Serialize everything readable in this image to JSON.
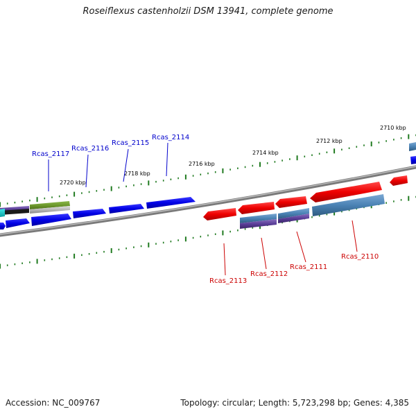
{
  "title": "Roseiflexus castenholzii DSM 13941, complete genome",
  "footer": {
    "accession": "Accession: NC_009767",
    "summary": "Topology: circular; Length: 5,723,298 bp; Genes: 4,385"
  },
  "colors": {
    "backbone": "#7a7a7a",
    "tick": "#1f7a1f",
    "forward_gene": "#0000ee",
    "reverse_gene": "#ee0000",
    "forward_label": "#0000cc",
    "reverse_label": "#cc0000",
    "feature_steelblue": "#4a82b4",
    "feature_purple": "#6a4aa0",
    "feature_green": "#6e9a2e"
  },
  "scale_labels": [
    "2710 kbp",
    "2712 kbp",
    "2714 kbp",
    "2716 kbp",
    "2718 kbp",
    "2720 kbp"
  ],
  "gene_labels": [
    {
      "text": "Rcas_2117",
      "strand": "forward"
    },
    {
      "text": "Rcas_2116",
      "strand": "forward"
    },
    {
      "text": "Rcas_2115",
      "strand": "forward"
    },
    {
      "text": "Rcas_2114",
      "strand": "forward"
    },
    {
      "text": "Rcas_2113",
      "strand": "reverse"
    },
    {
      "text": "Rcas_2112",
      "strand": "reverse"
    },
    {
      "text": "Rcas_2111",
      "strand": "reverse"
    },
    {
      "text": "Rcas_2110",
      "strand": "reverse"
    }
  ]
}
